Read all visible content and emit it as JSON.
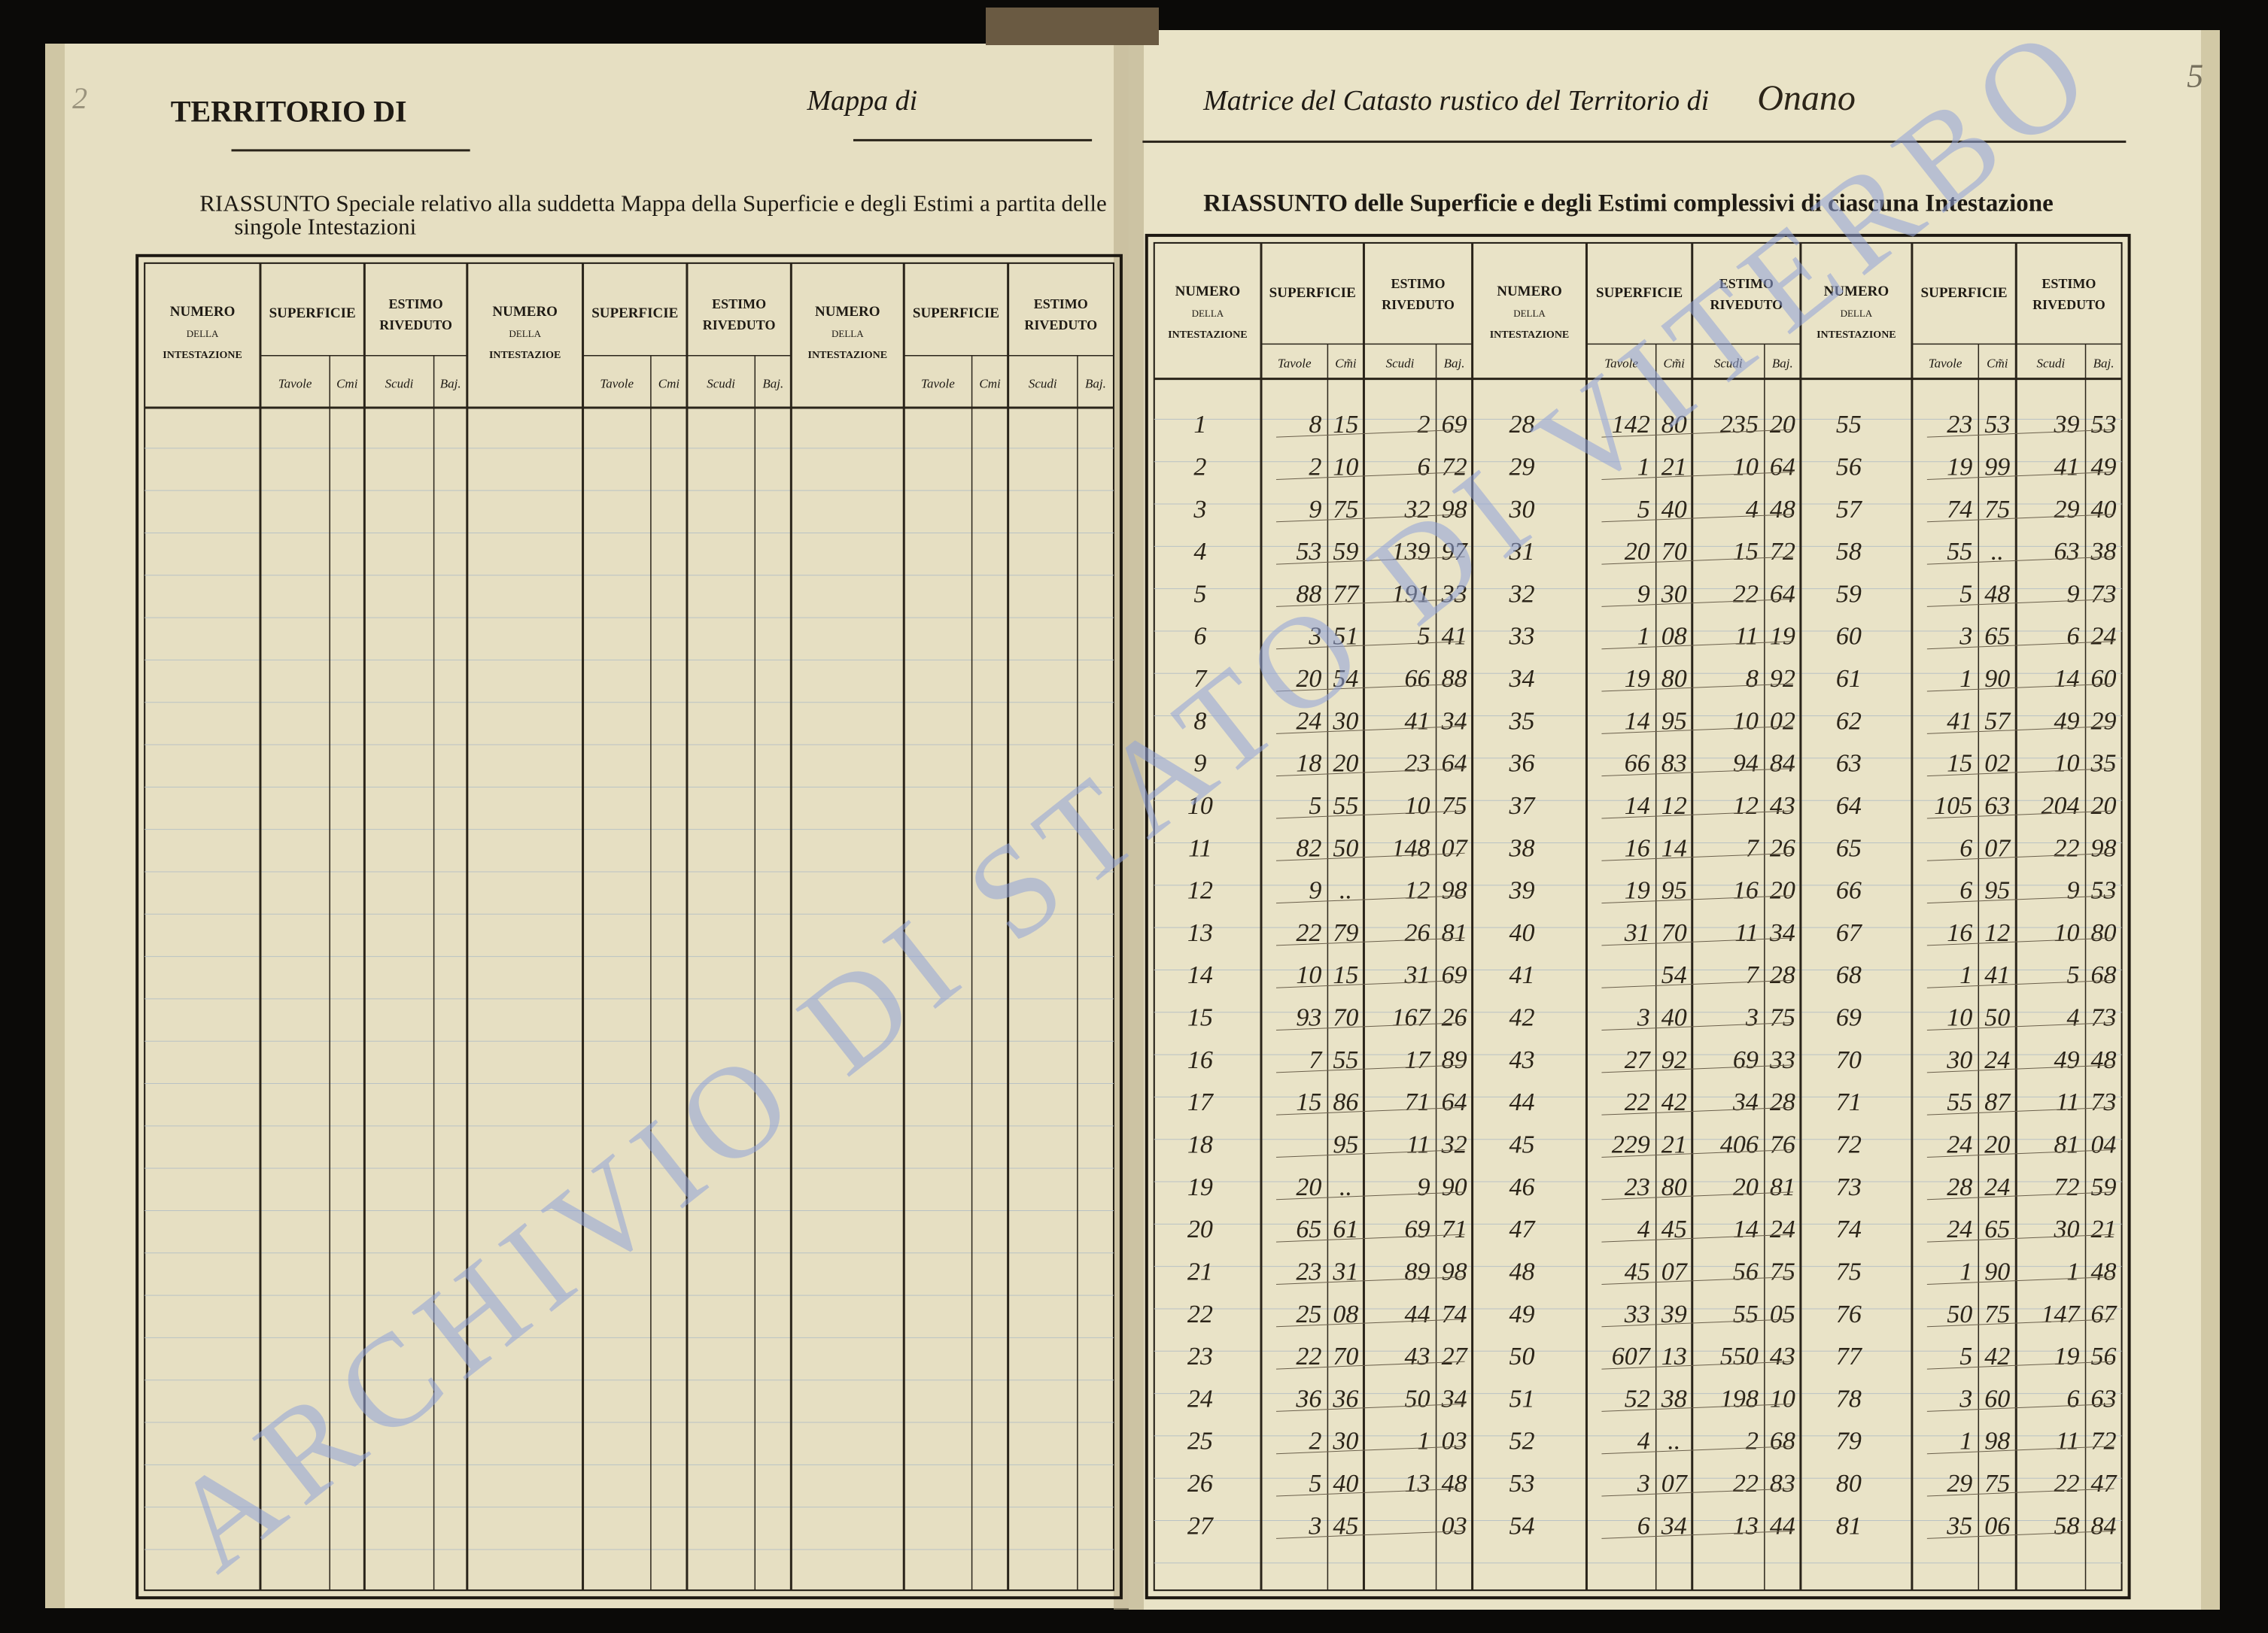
{
  "left_page": {
    "page_number": "2",
    "header": {
      "title": "TERRITORIO DI",
      "map_label": "Mappa di"
    },
    "subtitle": [
      "RIASSUNTO Speciale relativo alla suddetta Mappa della Superficie e degli Estimi a partita delle",
      "singole Intestazioni"
    ],
    "table": {
      "groups": [
        {
          "number": [
            "NUMERO",
            "DELLA",
            "INTESTAZIONE"
          ],
          "surface": "SUPERFICIE",
          "estimate": [
            "ESTIMO",
            "RIVEDUTO"
          ],
          "sub": [
            "Tavole",
            "Cmi",
            "Scudi",
            "Baj."
          ]
        },
        {
          "number": [
            "NUMERO",
            "DELLA",
            "INTESTAZIOE"
          ],
          "surface": "SUPERFICIE",
          "estimate": [
            "ESTIMO",
            "RIVEDUTO"
          ],
          "sub": [
            "Tavole",
            "Cmi",
            "Scudi",
            "Baj."
          ]
        },
        {
          "number": [
            "NUMERO",
            "DELLA",
            "INTESTAZIONE"
          ],
          "surface": "SUPERFICIE",
          "estimate": [
            "ESTIMO",
            "RIVEDUTO"
          ],
          "sub": [
            "Tavole",
            "Cmi",
            "Scudi",
            "Baj."
          ]
        }
      ]
    }
  },
  "right_page": {
    "page_number": "5",
    "header": {
      "title": "Matrice del Catasto rustico del Territorio di",
      "place": "Onano"
    },
    "subtitle": "RIASSUNTO delle Superficie e degli Estimi complessivi di ciascuna Intestazione",
    "table": {
      "groups": [
        {
          "number": [
            "NUMERO",
            "DELLA",
            "INTESTAZIONE"
          ],
          "surface": "SUPERFICIE",
          "estimate": [
            "ESTIMO",
            "RIVEDUTO"
          ],
          "sub": [
            "Tavole",
            "Cm̃i",
            "Scudi",
            "Baj."
          ]
        },
        {
          "number": [
            "NUMERO",
            "DELLA",
            "INTESTAZIONE"
          ],
          "surface": "SUPERFICIE",
          "estimate": [
            "ESTIMO",
            "RIVEDUTO"
          ],
          "sub": [
            "Tavole",
            "Cm̃i",
            "Scudi",
            "Baj."
          ]
        },
        {
          "number": [
            "NUMERO",
            "DELLA",
            "INTESTAZIONE"
          ],
          "surface": "SUPERFICIE",
          "estimate": [
            "ESTIMO",
            "RIVEDUTO"
          ],
          "sub": [
            "Tavole",
            "Cm̃i",
            "Scudi",
            "Baj."
          ]
        }
      ],
      "rows": [
        [
          [
            "1",
            "8",
            "15",
            "2",
            "69"
          ],
          [
            "28",
            "142",
            "80",
            "235",
            "20"
          ],
          [
            "55",
            "23",
            "53",
            "39",
            "53"
          ]
        ],
        [
          [
            "2",
            "2",
            "10",
            "6",
            "72"
          ],
          [
            "29",
            "1",
            "21",
            "10",
            "64"
          ],
          [
            "56",
            "19",
            "99",
            "41",
            "49"
          ]
        ],
        [
          [
            "3",
            "9",
            "75",
            "32",
            "98"
          ],
          [
            "30",
            "5",
            "40",
            "4",
            "48"
          ],
          [
            "57",
            "74",
            "75",
            "29",
            "40"
          ]
        ],
        [
          [
            "4",
            "53",
            "59",
            "139",
            "97"
          ],
          [
            "31",
            "20",
            "70",
            "15",
            "72"
          ],
          [
            "58",
            "55",
            "..",
            "63",
            "38"
          ]
        ],
        [
          [
            "5",
            "88",
            "77",
            "191",
            "33"
          ],
          [
            "32",
            "9",
            "30",
            "22",
            "64"
          ],
          [
            "59",
            "5",
            "48",
            "9",
            "73"
          ]
        ],
        [
          [
            "6",
            "3",
            "51",
            "5",
            "41"
          ],
          [
            "33",
            "1",
            "08",
            "11",
            "19"
          ],
          [
            "60",
            "3",
            "65",
            "6",
            "24"
          ]
        ],
        [
          [
            "7",
            "20",
            "54",
            "66",
            "88"
          ],
          [
            "34",
            "19",
            "80",
            "8",
            "92"
          ],
          [
            "61",
            "1",
            "90",
            "14",
            "60"
          ]
        ],
        [
          [
            "8",
            "24",
            "30",
            "41",
            "34"
          ],
          [
            "35",
            "14",
            "95",
            "10",
            "02"
          ],
          [
            "62",
            "41",
            "57",
            "49",
            "29"
          ]
        ],
        [
          [
            "9",
            "18",
            "20",
            "23",
            "64"
          ],
          [
            "36",
            "66",
            "83",
            "94",
            "84"
          ],
          [
            "63",
            "15",
            "02",
            "10",
            "35"
          ]
        ],
        [
          [
            "10",
            "5",
            "55",
            "10",
            "75"
          ],
          [
            "37",
            "14",
            "12",
            "12",
            "43"
          ],
          [
            "64",
            "105",
            "63",
            "204",
            "20"
          ]
        ],
        [
          [
            "11",
            "82",
            "50",
            "148",
            "07"
          ],
          [
            "38",
            "16",
            "14",
            "7",
            "26"
          ],
          [
            "65",
            "6",
            "07",
            "22",
            "98"
          ]
        ],
        [
          [
            "12",
            "9",
            "..",
            "12",
            "98"
          ],
          [
            "39",
            "19",
            "95",
            "16",
            "20"
          ],
          [
            "66",
            "6",
            "95",
            "9",
            "53"
          ]
        ],
        [
          [
            "13",
            "22",
            "79",
            "26",
            "81"
          ],
          [
            "40",
            "31",
            "70",
            "11",
            "34"
          ],
          [
            "67",
            "16",
            "12",
            "10",
            "80"
          ]
        ],
        [
          [
            "14",
            "10",
            "15",
            "31",
            "69"
          ],
          [
            "41",
            null,
            "54",
            "7",
            "28"
          ],
          [
            "68",
            "1",
            "41",
            "5",
            "68"
          ]
        ],
        [
          [
            "15",
            "93",
            "70",
            "167",
            "26"
          ],
          [
            "42",
            "3",
            "40",
            "3",
            "75"
          ],
          [
            "69",
            "10",
            "50",
            "4",
            "73"
          ]
        ],
        [
          [
            "16",
            "7",
            "55",
            "17",
            "89"
          ],
          [
            "43",
            "27",
            "92",
            "69",
            "33"
          ],
          [
            "70",
            "30",
            "24",
            "49",
            "48"
          ]
        ],
        [
          [
            "17",
            "15",
            "86",
            "71",
            "64"
          ],
          [
            "44",
            "22",
            "42",
            "34",
            "28"
          ],
          [
            "71",
            "55",
            "87",
            "11",
            "73"
          ]
        ],
        [
          [
            "18",
            null,
            "95",
            "11",
            "32"
          ],
          [
            "45",
            "229",
            "21",
            "406",
            "76"
          ],
          [
            "72",
            "24",
            "20",
            "81",
            "04"
          ]
        ],
        [
          [
            "19",
            "20",
            "..",
            "9",
            "90"
          ],
          [
            "46",
            "23",
            "80",
            "20",
            "81"
          ],
          [
            "73",
            "28",
            "24",
            "72",
            "59"
          ]
        ],
        [
          [
            "20",
            "65",
            "61",
            "69",
            "71"
          ],
          [
            "47",
            "4",
            "45",
            "14",
            "24"
          ],
          [
            "74",
            "24",
            "65",
            "30",
            "21"
          ]
        ],
        [
          [
            "21",
            "23",
            "31",
            "89",
            "98"
          ],
          [
            "48",
            "45",
            "07",
            "56",
            "75"
          ],
          [
            "75",
            "1",
            "90",
            "1",
            "48"
          ]
        ],
        [
          [
            "22",
            "25",
            "08",
            "44",
            "74"
          ],
          [
            "49",
            "33",
            "39",
            "55",
            "05"
          ],
          [
            "76",
            "50",
            "75",
            "147",
            "67"
          ]
        ],
        [
          [
            "23",
            "22",
            "70",
            "43",
            "27"
          ],
          [
            "50",
            "607",
            "13",
            "550",
            "43"
          ],
          [
            "77",
            "5",
            "42",
            "19",
            "56"
          ]
        ],
        [
          [
            "24",
            "36",
            "36",
            "50",
            "34"
          ],
          [
            "51",
            "52",
            "38",
            "198",
            "10"
          ],
          [
            "78",
            "3",
            "60",
            "6",
            "63"
          ]
        ],
        [
          [
            "25",
            "2",
            "30",
            "1",
            "03"
          ],
          [
            "52",
            "4",
            "..",
            "2",
            "68"
          ],
          [
            "79",
            "1",
            "98",
            "11",
            "72"
          ]
        ],
        [
          [
            "26",
            "5",
            "40",
            "13",
            "48"
          ],
          [
            "53",
            "3",
            "07",
            "22",
            "83"
          ],
          [
            "80",
            "29",
            "75",
            "22",
            "47"
          ]
        ],
        [
          [
            "27",
            "3",
            "45",
            null,
            "03"
          ],
          [
            "54",
            "6",
            "34",
            "13",
            "44"
          ],
          [
            "81",
            "35",
            "06",
            "58",
            "84"
          ]
        ]
      ]
    }
  },
  "watermark": "ARCHIVIO DI STATO DI VITERBO"
}
